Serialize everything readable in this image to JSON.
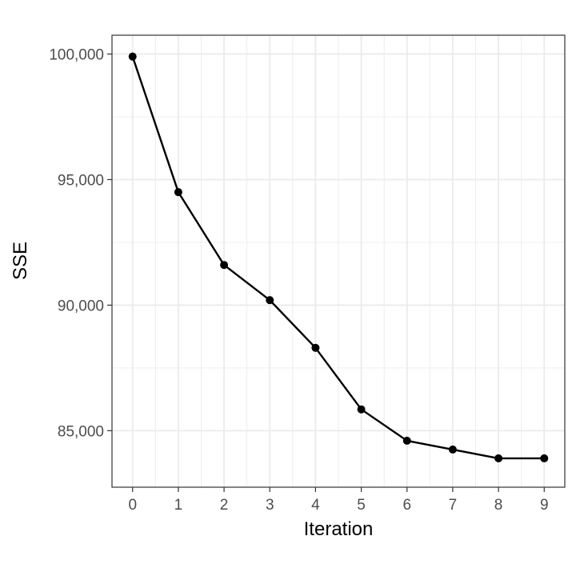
{
  "chart_data": {
    "type": "line",
    "title": "",
    "xlabel": "Iteration",
    "ylabel": "SSE",
    "x": [
      0,
      1,
      2,
      3,
      4,
      5,
      6,
      7,
      8,
      9
    ],
    "series": [
      {
        "values": [
          99900,
          94500,
          91600,
          90200,
          88300,
          85850,
          84600,
          84250,
          83900,
          83900
        ]
      }
    ],
    "x_ticks": [
      0,
      1,
      2,
      3,
      4,
      5,
      6,
      7,
      8,
      9
    ],
    "x_tick_labels": [
      "0",
      "1",
      "2",
      "3",
      "4",
      "5",
      "6",
      "7",
      "8",
      "9"
    ],
    "y_ticks": [
      85000,
      90000,
      95000,
      100000
    ],
    "y_tick_labels": [
      "85,000",
      "90,000",
      "95,000",
      "100,000"
    ],
    "xlim": [
      -0.45,
      9.45
    ],
    "ylim": [
      82750,
      100750
    ],
    "grid": true,
    "legend": "none",
    "colors": {
      "line": "#000000",
      "grid": "#ebebeb",
      "panel_border": "#333333"
    }
  }
}
